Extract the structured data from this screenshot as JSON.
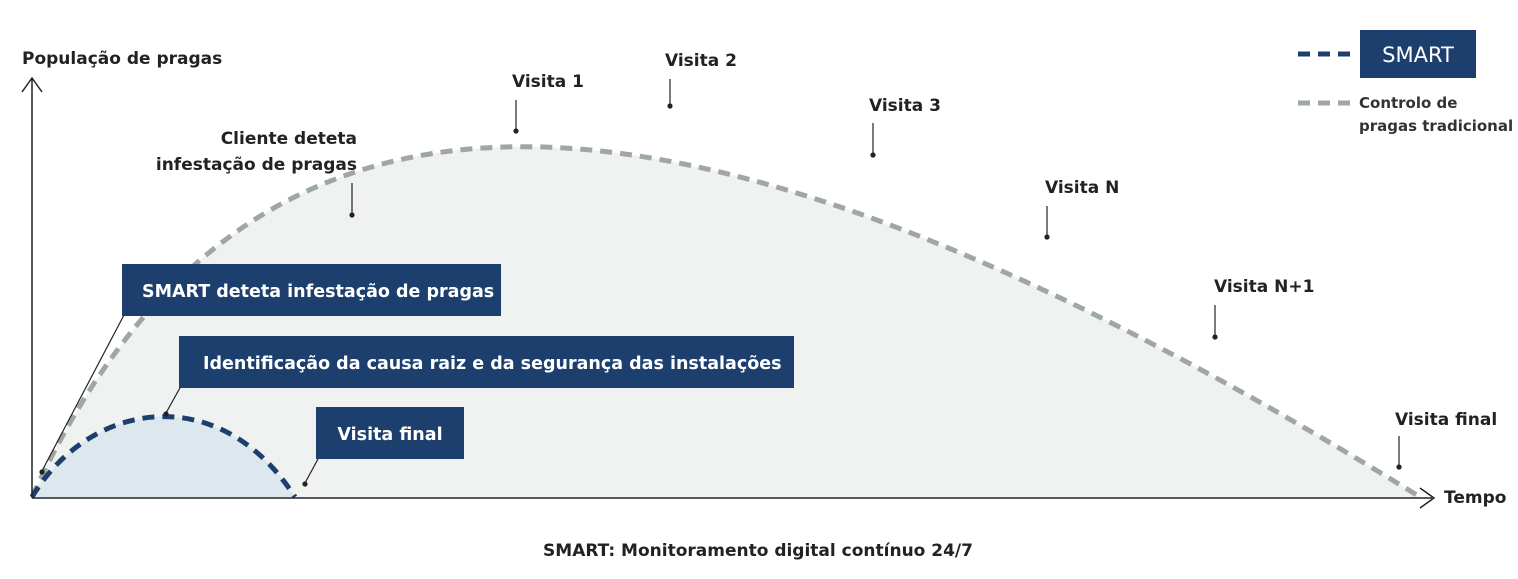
{
  "axes": {
    "y_label": "População de pragas",
    "x_label": "Tempo"
  },
  "caption": "SMART: Monitoramento digital contínuo 24/7",
  "legend": {
    "smart_label": "SMART",
    "traditional_line1": "Controlo de",
    "traditional_line2": "pragas tradicional"
  },
  "colors": {
    "smart": "#1d3f6e",
    "traditional": "#9ea7a5",
    "traditional_fill": "#f0f1f1",
    "smart_fill": "#dde7ee"
  },
  "traditional_labels": {
    "detect_line1": "Cliente deteta",
    "detect_line2": "infestação de pragas",
    "visit1": "Visita 1",
    "visit2": "Visita 2",
    "visit3": "Visita 3",
    "visitN": "Visita N",
    "visitN1": "Visita N+1",
    "final": "Visita final"
  },
  "smart_labels": {
    "detect": "SMART deteta infestação de pragas",
    "root_cause": "Identificação da causa raiz e da segurança das instalações",
    "final": "Visita final"
  }
}
